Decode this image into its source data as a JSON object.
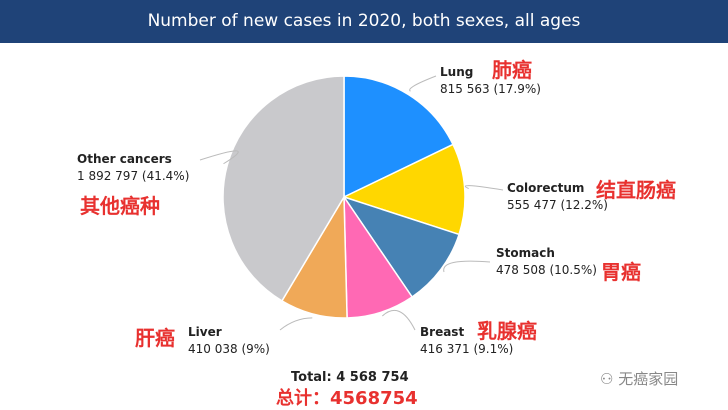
{
  "chart_data": {
    "type": "pie",
    "title": "Number of new cases in 2020, both sexes, all ages",
    "slices": [
      {
        "label": "Lung",
        "value": 815563,
        "percent": "17.9%",
        "value_text": "815 563",
        "cn": "肺癌",
        "color": "#1e90ff"
      },
      {
        "label": "Colorectum",
        "value": 555477,
        "percent": "12.2%",
        "value_text": "555 477",
        "cn": "结直肠癌",
        "color": "#ffd700"
      },
      {
        "label": "Stomach",
        "value": 478508,
        "percent": "10.5%",
        "value_text": "478 508",
        "cn": "胃癌",
        "color": "#4682b4"
      },
      {
        "label": "Breast",
        "value": 416371,
        "percent": "9.1%",
        "value_text": "416 371",
        "cn": "乳腺癌",
        "color": "#ff69b4"
      },
      {
        "label": "Liver",
        "value": 410038,
        "percent": "9%",
        "value_text": "410 038",
        "cn": "肝癌",
        "color": "#f0a958"
      },
      {
        "label": "Other cancers",
        "value": 1892797,
        "percent": "41.4%",
        "value_text": "1 892 797",
        "cn": "其他癌种",
        "color": "#c9c9cc"
      }
    ],
    "total_text": "Total: 4 568 754",
    "total_cn": "总计：4568754"
  },
  "watermark": "无癌家园"
}
